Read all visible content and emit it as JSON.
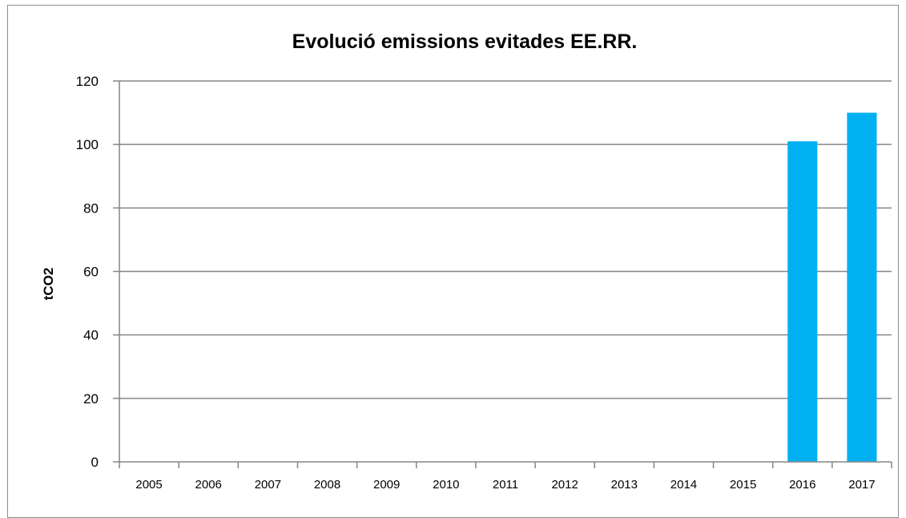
{
  "chart_data": {
    "type": "bar",
    "title": "Evolució emissions evitades EE.RR.",
    "xlabel": "",
    "ylabel": "tCO2",
    "categories": [
      "2005",
      "2006",
      "2007",
      "2008",
      "2009",
      "2010",
      "2011",
      "2012",
      "2013",
      "2014",
      "2015",
      "2016",
      "2017"
    ],
    "values": [
      0,
      0,
      0,
      0,
      0,
      0,
      0,
      0,
      0,
      0,
      0,
      101,
      110
    ],
    "ylim": [
      0,
      120
    ],
    "yticks": [
      "0",
      "20",
      "40",
      "60",
      "80",
      "100",
      "120"
    ],
    "grid": true,
    "legend": "none",
    "bar_color": "#00b0f0"
  }
}
